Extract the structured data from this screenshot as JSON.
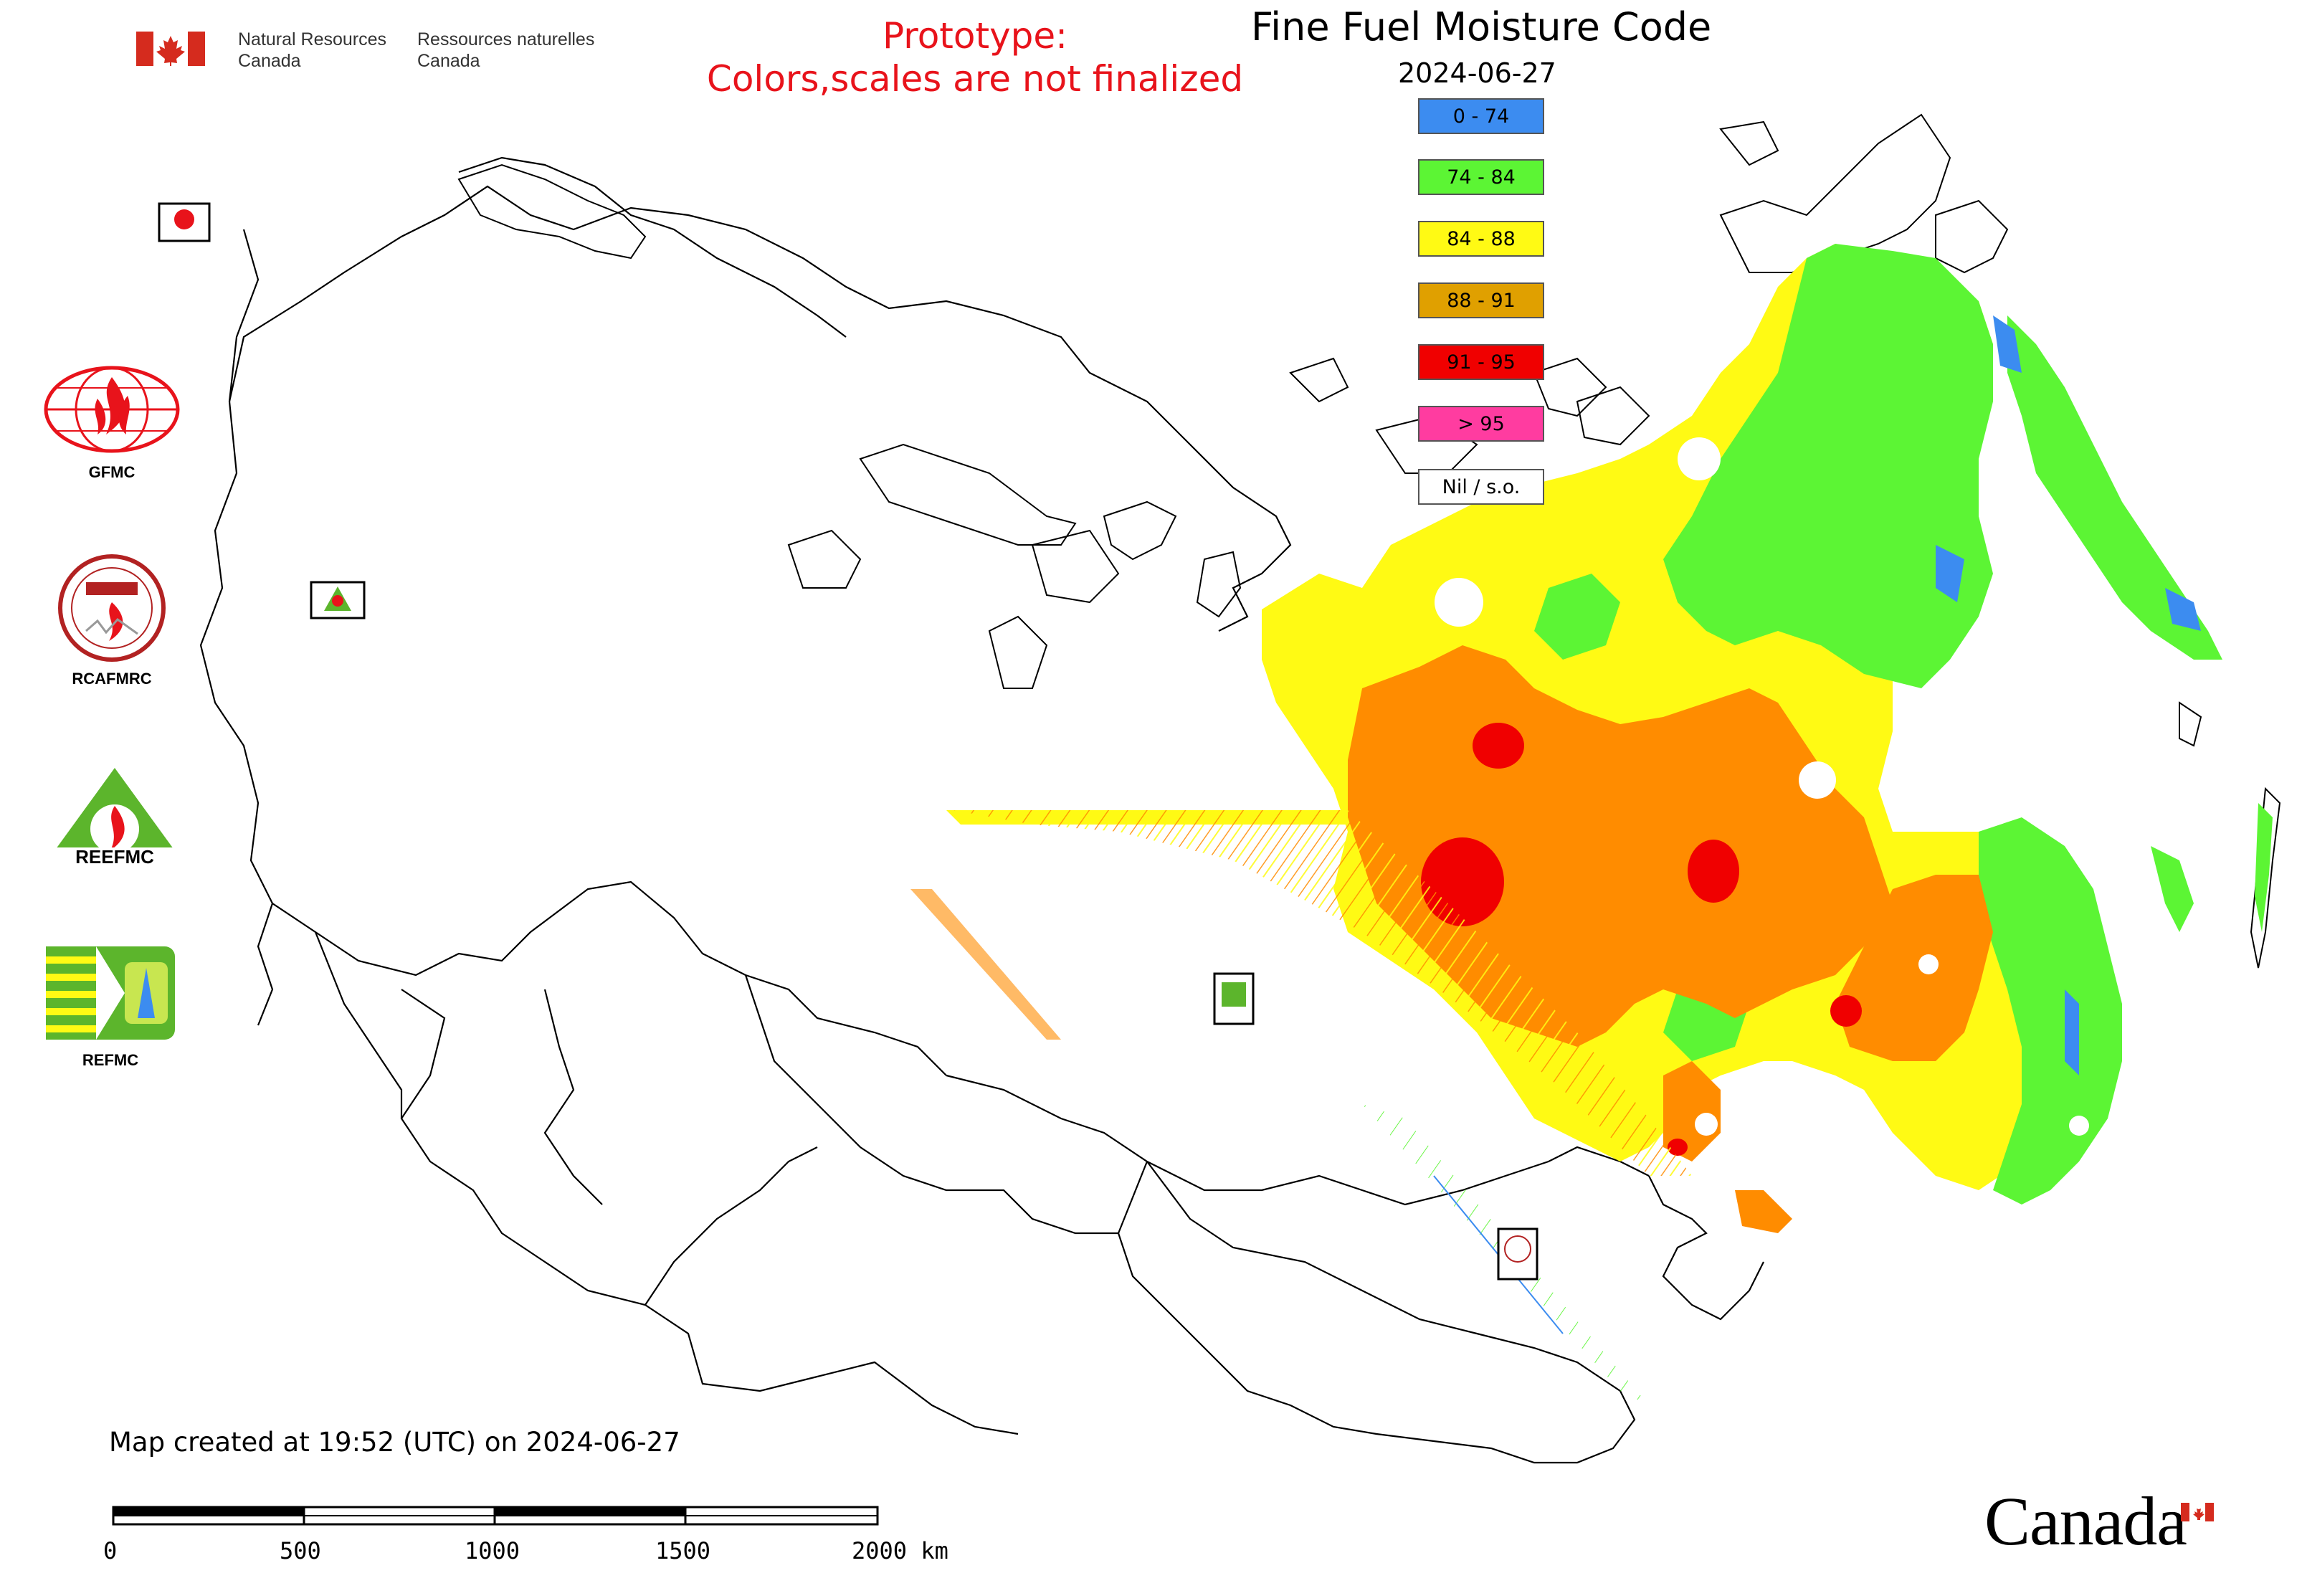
{
  "header": {
    "org_en_line1": "Natural Resources",
    "org_en_line2": "Canada",
    "org_fr_line1": "Ressources naturelles",
    "org_fr_line2": "Canada",
    "prototype_line1": "Prototype:",
    "prototype_line2": "Colors,scales are not finalized"
  },
  "map": {
    "title": "Fine Fuel Moisture Code",
    "date": "2024-06-27",
    "created_note": "Map created at 19:52 (UTC) on 2024-06-27"
  },
  "legend": {
    "items": [
      {
        "label": "0 - 74",
        "color": "#3c8cf0"
      },
      {
        "label": "74 - 84",
        "color": "#5cf534"
      },
      {
        "label": "84 - 88",
        "color": "#fffa14"
      },
      {
        "label": "88 - 91",
        "color": "#e0a000"
      },
      {
        "label": "91 - 95",
        "color": "#f00000"
      },
      {
        "label": "> 95",
        "color": "#ff3ca0"
      },
      {
        "label": "Nil / s.o.",
        "color": "#ffffff"
      }
    ]
  },
  "logos": {
    "gfmc": "GFMC",
    "rcafmrc": "RCAFMRC",
    "reefmc": "REEFMC",
    "refmc": "REFMC"
  },
  "scale_bar": {
    "ticks": [
      "0",
      "500",
      "1000",
      "1500",
      "2000 km"
    ]
  },
  "footer": {
    "wordmark": "Canada"
  },
  "colors": {
    "prototype_red": "#e8131b",
    "canada_red": "#d52b1e",
    "fire_orange": "#ff8c00"
  }
}
